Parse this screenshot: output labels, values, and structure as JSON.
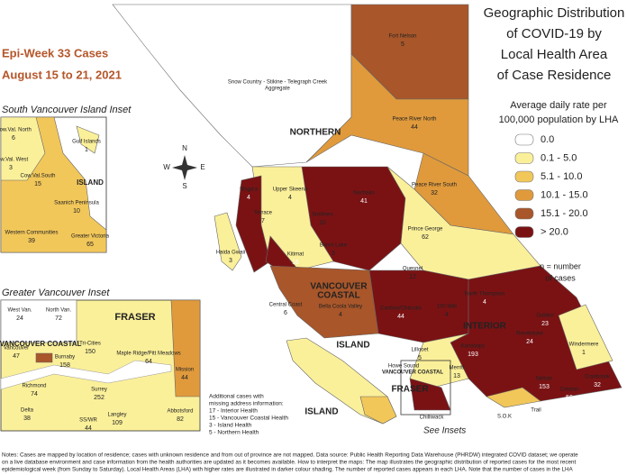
{
  "header": {
    "epi_week": "Epi-Week 33 Cases",
    "dates": "August 15 to 21, 2021",
    "title": [
      "Geographic Distribution",
      "of COVID-19 by",
      "Local Health Area",
      "of Case Residence"
    ]
  },
  "legend": {
    "title": [
      "Average daily rate per",
      "100,000 population by LHA"
    ],
    "items": [
      {
        "label": "0.0",
        "color": "#ffffff"
      },
      {
        "label": "0.1 - 5.0",
        "color": "#fbf09a"
      },
      {
        "label": "5.1 - 10.0",
        "color": "#f2c75a"
      },
      {
        "label": "10.1 - 15.0",
        "color": "#e09a3c"
      },
      {
        "label": "15.1 - 20.0",
        "color": "#a8562a"
      },
      {
        "label": "> 20.0",
        "color": "#7a1214"
      }
    ],
    "note": [
      "n = number",
      "of cases"
    ]
  },
  "compass": [
    "N",
    "E",
    "S",
    "W"
  ],
  "map": {
    "snow_country": [
      "Snow Country - Stikine - Telegraph Creek",
      "Aggregate"
    ],
    "regions": [
      "NORTHERN",
      "VANCOUVER",
      "COASTAL",
      "INTERIOR",
      "ISLAND",
      "ISLAND",
      "FRASER",
      "VANCOUVER COASTAL"
    ],
    "labels": [
      {
        "name": "Fort Nelson",
        "cases": 5
      },
      {
        "name": "Peace River North",
        "cases": 44
      },
      {
        "name": "Peace River South",
        "cases": 32
      },
      {
        "name": "Nechako",
        "cases": 41
      },
      {
        "name": "Prince George",
        "cases": 62
      },
      {
        "name": "Nisga'a",
        "cases": 4
      },
      {
        "name": "Upper Skeena",
        "cases": 4
      },
      {
        "name": "Terrace",
        "cases": 7
      },
      {
        "name": "Smithers",
        "cases": 10
      },
      {
        "name": "Burns Lake",
        "cases": 3
      },
      {
        "name": "Kitimat",
        "cases": 16
      },
      {
        "name": "Haida Gwaii",
        "cases": 3
      },
      {
        "name": "Central Coast",
        "cases": 6
      },
      {
        "name": "Bella Coola Valley",
        "cases": 4
      },
      {
        "name": "Quesnel",
        "cases": 12
      },
      {
        "name": "Cariboo/Chilcotin",
        "cases": 44
      },
      {
        "name": "100 Mile",
        "cases": 4
      },
      {
        "name": "North Thompson",
        "cases": 4
      },
      {
        "name": "Golden",
        "cases": 23
      },
      {
        "name": "Revelstoke",
        "cases": 24
      },
      {
        "name": "Kamloops",
        "cases": 193
      },
      {
        "name": "Windermere",
        "cases": 1
      },
      {
        "name": "Lillooet",
        "cases": 5
      },
      {
        "name": "Merritt",
        "cases": 13
      },
      {
        "name": "Howe Sound",
        "cases": 3
      },
      {
        "name": "Nelson",
        "cases": 153
      },
      {
        "name": "Creston",
        "cases": 56
      },
      {
        "name": "Cranbrook",
        "cases": 32
      }
    ],
    "places": [
      "Chilliwack",
      "S.O.K",
      "Trail"
    ],
    "see_insets": "See Insets"
  },
  "south_island_inset": {
    "title": "South Vancouver Island Inset",
    "region": "ISLAND",
    "labels": [
      {
        "name": "Cow.Val. North",
        "cases": 6
      },
      {
        "name": "Gulf Islands",
        "cases": 1
      },
      {
        "name": "Cow.Val. West",
        "cases": 3
      },
      {
        "name": "Cow.Val.South",
        "cases": 15
      },
      {
        "name": "Saanich Peninsula",
        "cases": 10
      },
      {
        "name": "Western Communities",
        "cases": 39
      },
      {
        "name": "Greater Victoria",
        "cases": 65
      }
    ]
  },
  "vancouver_inset": {
    "title": "Greater Vancouver Inset",
    "regions": [
      "FRASER",
      "VANCOUVER COASTAL"
    ],
    "labels": [
      {
        "name": "West Van.",
        "cases": 24
      },
      {
        "name": "North Van.",
        "cases": 72
      },
      {
        "name": "Vancouver",
        "cases": 47
      },
      {
        "name": "Burnaby",
        "cases": 158
      },
      {
        "name": "Tri-Cities",
        "cases": 150
      },
      {
        "name": "Maple Ridge/Pitt Meadows",
        "cases": 64
      },
      {
        "name": "Mission",
        "cases": 44
      },
      {
        "name": "Richmond",
        "cases": 74
      },
      {
        "name": "Surrey",
        "cases": 252
      },
      {
        "name": "Langley",
        "cases": 109
      },
      {
        "name": "Delta",
        "cases": 38
      },
      {
        "name": "SS/WR",
        "cases": 44
      },
      {
        "name": "Abbotsford",
        "cases": 82
      }
    ]
  },
  "additional": [
    "Additional cases with",
    "missing address information:",
    "17 - Interior Health",
    "15 - Vancouver Coastal Health",
    "3 - Island Health",
    "5 - Northern Health"
  ],
  "notes": [
    "Notes: Cases are mapped by location of residence; cases with unknown residence and from out of province are not mapped. Data source: Public Health Reporting Data Warehouse (PHRDW) integrated COVID dataset; we operate",
    "on a live database environment and case information from the health authorities are updated as it becomes available. How to interpret the maps: The map illustrates the geographic distribution of reported cases for the most recent",
    "epidemiological week (from Sunday to Saturday). Local Health Areas (LHA) with higher rates are illustrated in darker colour shading. The number of reported cases appears in each LHA. Note that the number of cases in the LHA"
  ]
}
